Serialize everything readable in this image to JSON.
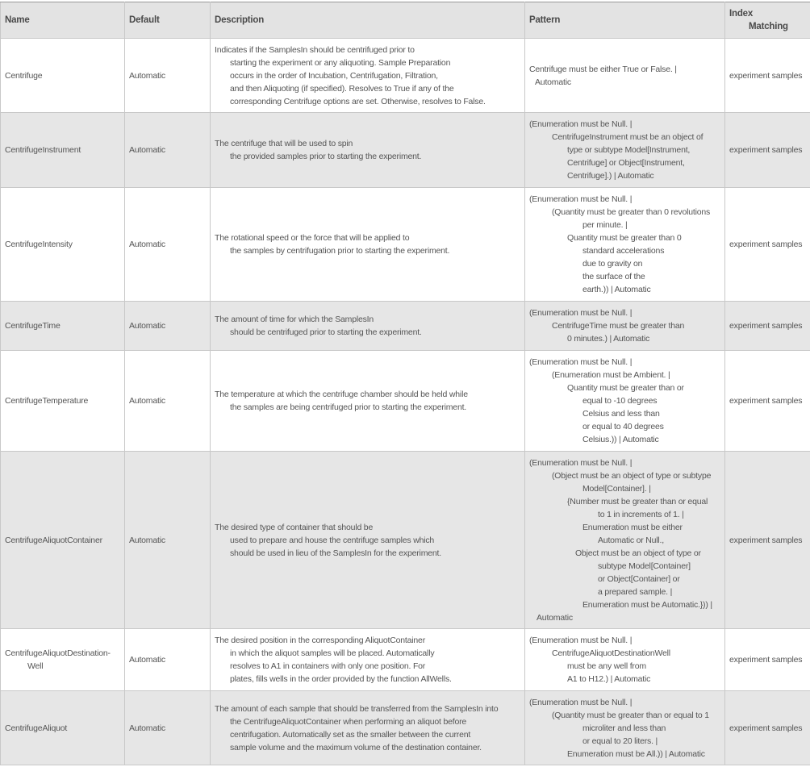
{
  "headers": {
    "name": "Name",
    "default": "Default",
    "description": "Description",
    "pattern": "Pattern",
    "index_1": "Index",
    "index_2": "Matching"
  },
  "rows": [
    {
      "name": [
        "Centrifuge"
      ],
      "default": "Automatic",
      "description": [
        "Indicates if the SamplesIn should be centrifuged prior to",
        "starting the experiment or any aliquoting. Sample Preparation",
        "occurs in the order of Incubation, Centrifugation, Filtration,",
        "and then Aliquoting (if specified).  Resolves to True if any of the",
        "corresponding Centrifuge options are set. Otherwise, resolves to False."
      ],
      "pattern": [
        "Centrifuge must be either True or False. |",
        "Automatic"
      ],
      "index": "experiment samples"
    },
    {
      "name": [
        "CentrifugeInstrument"
      ],
      "default": "Automatic",
      "description": [
        "The centrifuge that will be used to spin",
        "the provided samples prior to starting the experiment."
      ],
      "pattern": [
        "(Enumeration must be Null. |",
        "CentrifugeInstrument must be an object of",
        "type or subtype Model[Instrument,",
        "Centrifuge] or Object[Instrument,",
        "Centrifuge].) | Automatic"
      ],
      "index": "experiment samples"
    },
    {
      "name": [
        "CentrifugeIntensity"
      ],
      "default": "Automatic",
      "description": [
        "The rotational speed or the force that will be applied to",
        "the samples by centrifugation prior to starting the experiment."
      ],
      "pattern": [
        "(Enumeration must be Null. |",
        "(Quantity must be greater than 0 revolutions",
        "per minute. |",
        "Quantity must be greater than 0",
        "standard accelerations",
        "due to gravity on",
        "the surface of the",
        "earth.)) | Automatic"
      ],
      "index": "experiment samples"
    },
    {
      "name": [
        "CentrifugeTime"
      ],
      "default": "Automatic",
      "description": [
        "The amount of time for which the SamplesIn",
        "should be centrifuged prior to starting the experiment."
      ],
      "pattern": [
        "(Enumeration must be Null. |",
        "CentrifugeTime must be greater than",
        "0 minutes.) | Automatic"
      ],
      "index": "experiment samples"
    },
    {
      "name": [
        "CentrifugeTemperature"
      ],
      "default": "Automatic",
      "description": [
        "The temperature at which the centrifuge chamber should be held while",
        "the samples are being centrifuged prior to starting the experiment."
      ],
      "pattern": [
        "(Enumeration must be Null. |",
        "(Enumeration must be Ambient. |",
        "Quantity must be greater than or",
        "equal to -10 degrees",
        "Celsius and less than",
        "or equal to 40 degrees",
        "Celsius.)) | Automatic"
      ],
      "index": "experiment samples"
    },
    {
      "name": [
        "CentrifugeAliquotContainer"
      ],
      "default": "Automatic",
      "description": [
        "The desired type of container that should be",
        "used to prepare and house the centrifuge samples which",
        "should be used in lieu of the SamplesIn for the experiment."
      ],
      "pattern": [
        "(Enumeration must be Null. |",
        "(Object must be an object of type or subtype",
        "Model[Container]. |",
        "{Number must be greater than or equal",
        "to 1 in increments of 1. |",
        "Enumeration must be either",
        "Automatic or Null.,",
        "Object must be an object of type or",
        "subtype Model[Container]",
        "or Object[Container] or",
        "a prepared sample. |",
        "Enumeration must be Automatic.})) |",
        "Automatic"
      ],
      "index": "experiment samples"
    },
    {
      "name": [
        "CentrifugeAliquotDestination-",
        "Well"
      ],
      "default": "Automatic",
      "description": [
        "The desired position in the corresponding AliquotContainer",
        "in which the aliquot samples will be placed.  Automatically",
        "resolves to A1 in containers with only one position.  For",
        "plates, fills wells in the order provided by the function AllWells."
      ],
      "pattern": [
        "(Enumeration must be Null. |",
        "CentrifugeAliquotDestinationWell",
        "must be any well from",
        "A1 to H12.) | Automatic"
      ],
      "index": "experiment samples"
    },
    {
      "name": [
        "CentrifugeAliquot"
      ],
      "default": "Automatic",
      "description": [
        "The amount of each sample that should be transferred from the SamplesIn into",
        "the CentrifugeAliquotContainer when performing an aliquot before",
        "centrifugation.  Automatically set as the smaller between the current",
        "sample volume and the maximum volume of the destination container."
      ],
      "pattern": [
        "(Enumeration must be Null. |",
        "(Quantity must be greater than or equal to 1",
        "microliter and less than",
        "or equal to 20 liters. |",
        "Enumeration must be All.)) | Automatic"
      ],
      "index": "experiment samples"
    }
  ]
}
